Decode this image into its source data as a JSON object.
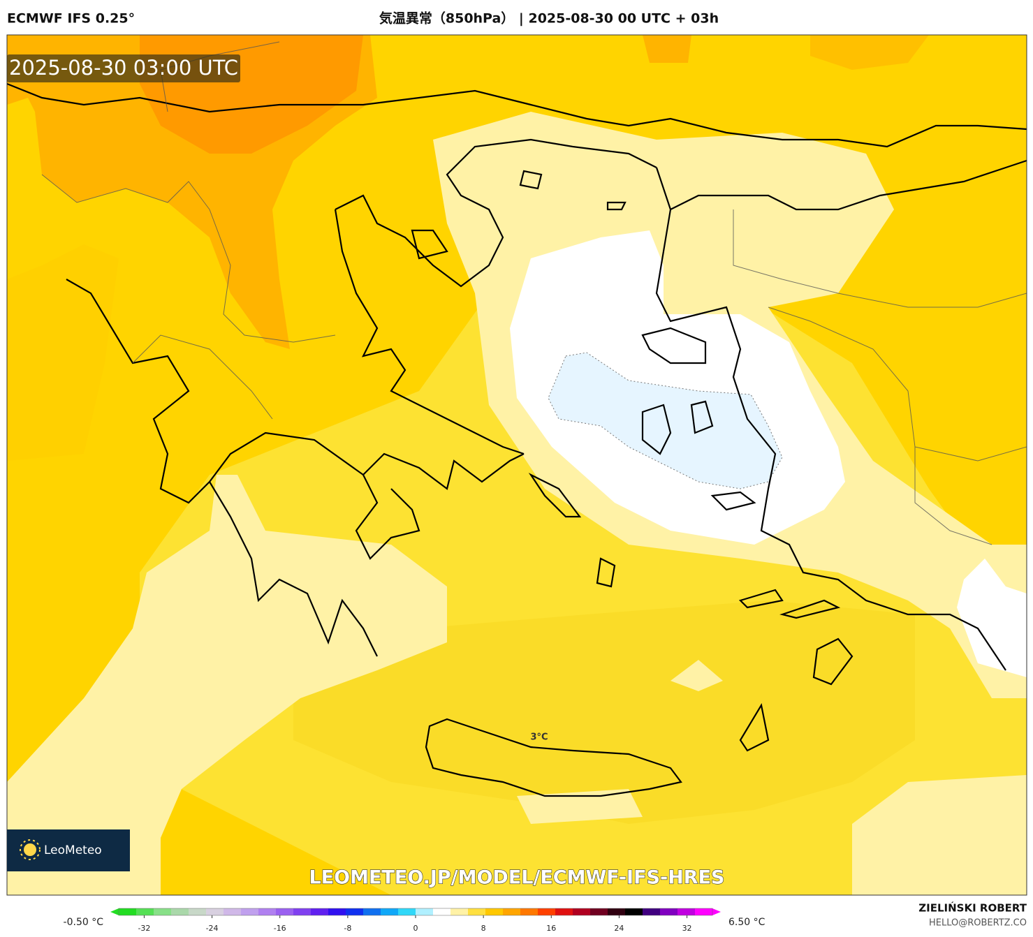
{
  "header": {
    "model": "ECMWF IFS 0.25°",
    "title": "気温異常（850hPa） | 2025-08-30 00 UTC + 03h"
  },
  "map": {
    "timestamp": "2025-08-30 03:00 UTC",
    "contour_label": "3°C",
    "watermark_url": "LEOMETEO.JP/MODEL/ECMWF-IFS-HRES",
    "logo": "LeoMeteo"
  },
  "colorbar": {
    "min_label": "-0.50 °C",
    "max_label": "6.50 °C",
    "xlim": [
      -35,
      35
    ],
    "xticks": [
      -32,
      -24,
      -16,
      -8,
      0,
      8,
      16,
      24,
      32
    ],
    "colors": [
      "#22dd22",
      "#55e055",
      "#88e088",
      "#aad8aa",
      "#c8d8c8",
      "#d8d0e0",
      "#d0b8e8",
      "#c0a0ee",
      "#b080f0",
      "#9a60f0",
      "#8040f0",
      "#6020f0",
      "#3010f0",
      "#1030f0",
      "#1070f0",
      "#10a8f8",
      "#30d8f8",
      "#b0f0ff",
      "#ffffff",
      "#fff2a6",
      "#ffe040",
      "#ffc800",
      "#ffa500",
      "#ff7800",
      "#ff4000",
      "#e01010",
      "#b00020",
      "#700020",
      "#300010",
      "#000000",
      "#400080",
      "#8000c0",
      "#c000e0",
      "#ff00ff"
    ]
  },
  "footer": {
    "author": "ZIELIŃSKI ROBERT",
    "email": "HELLO@ROBERTZ.CO"
  }
}
